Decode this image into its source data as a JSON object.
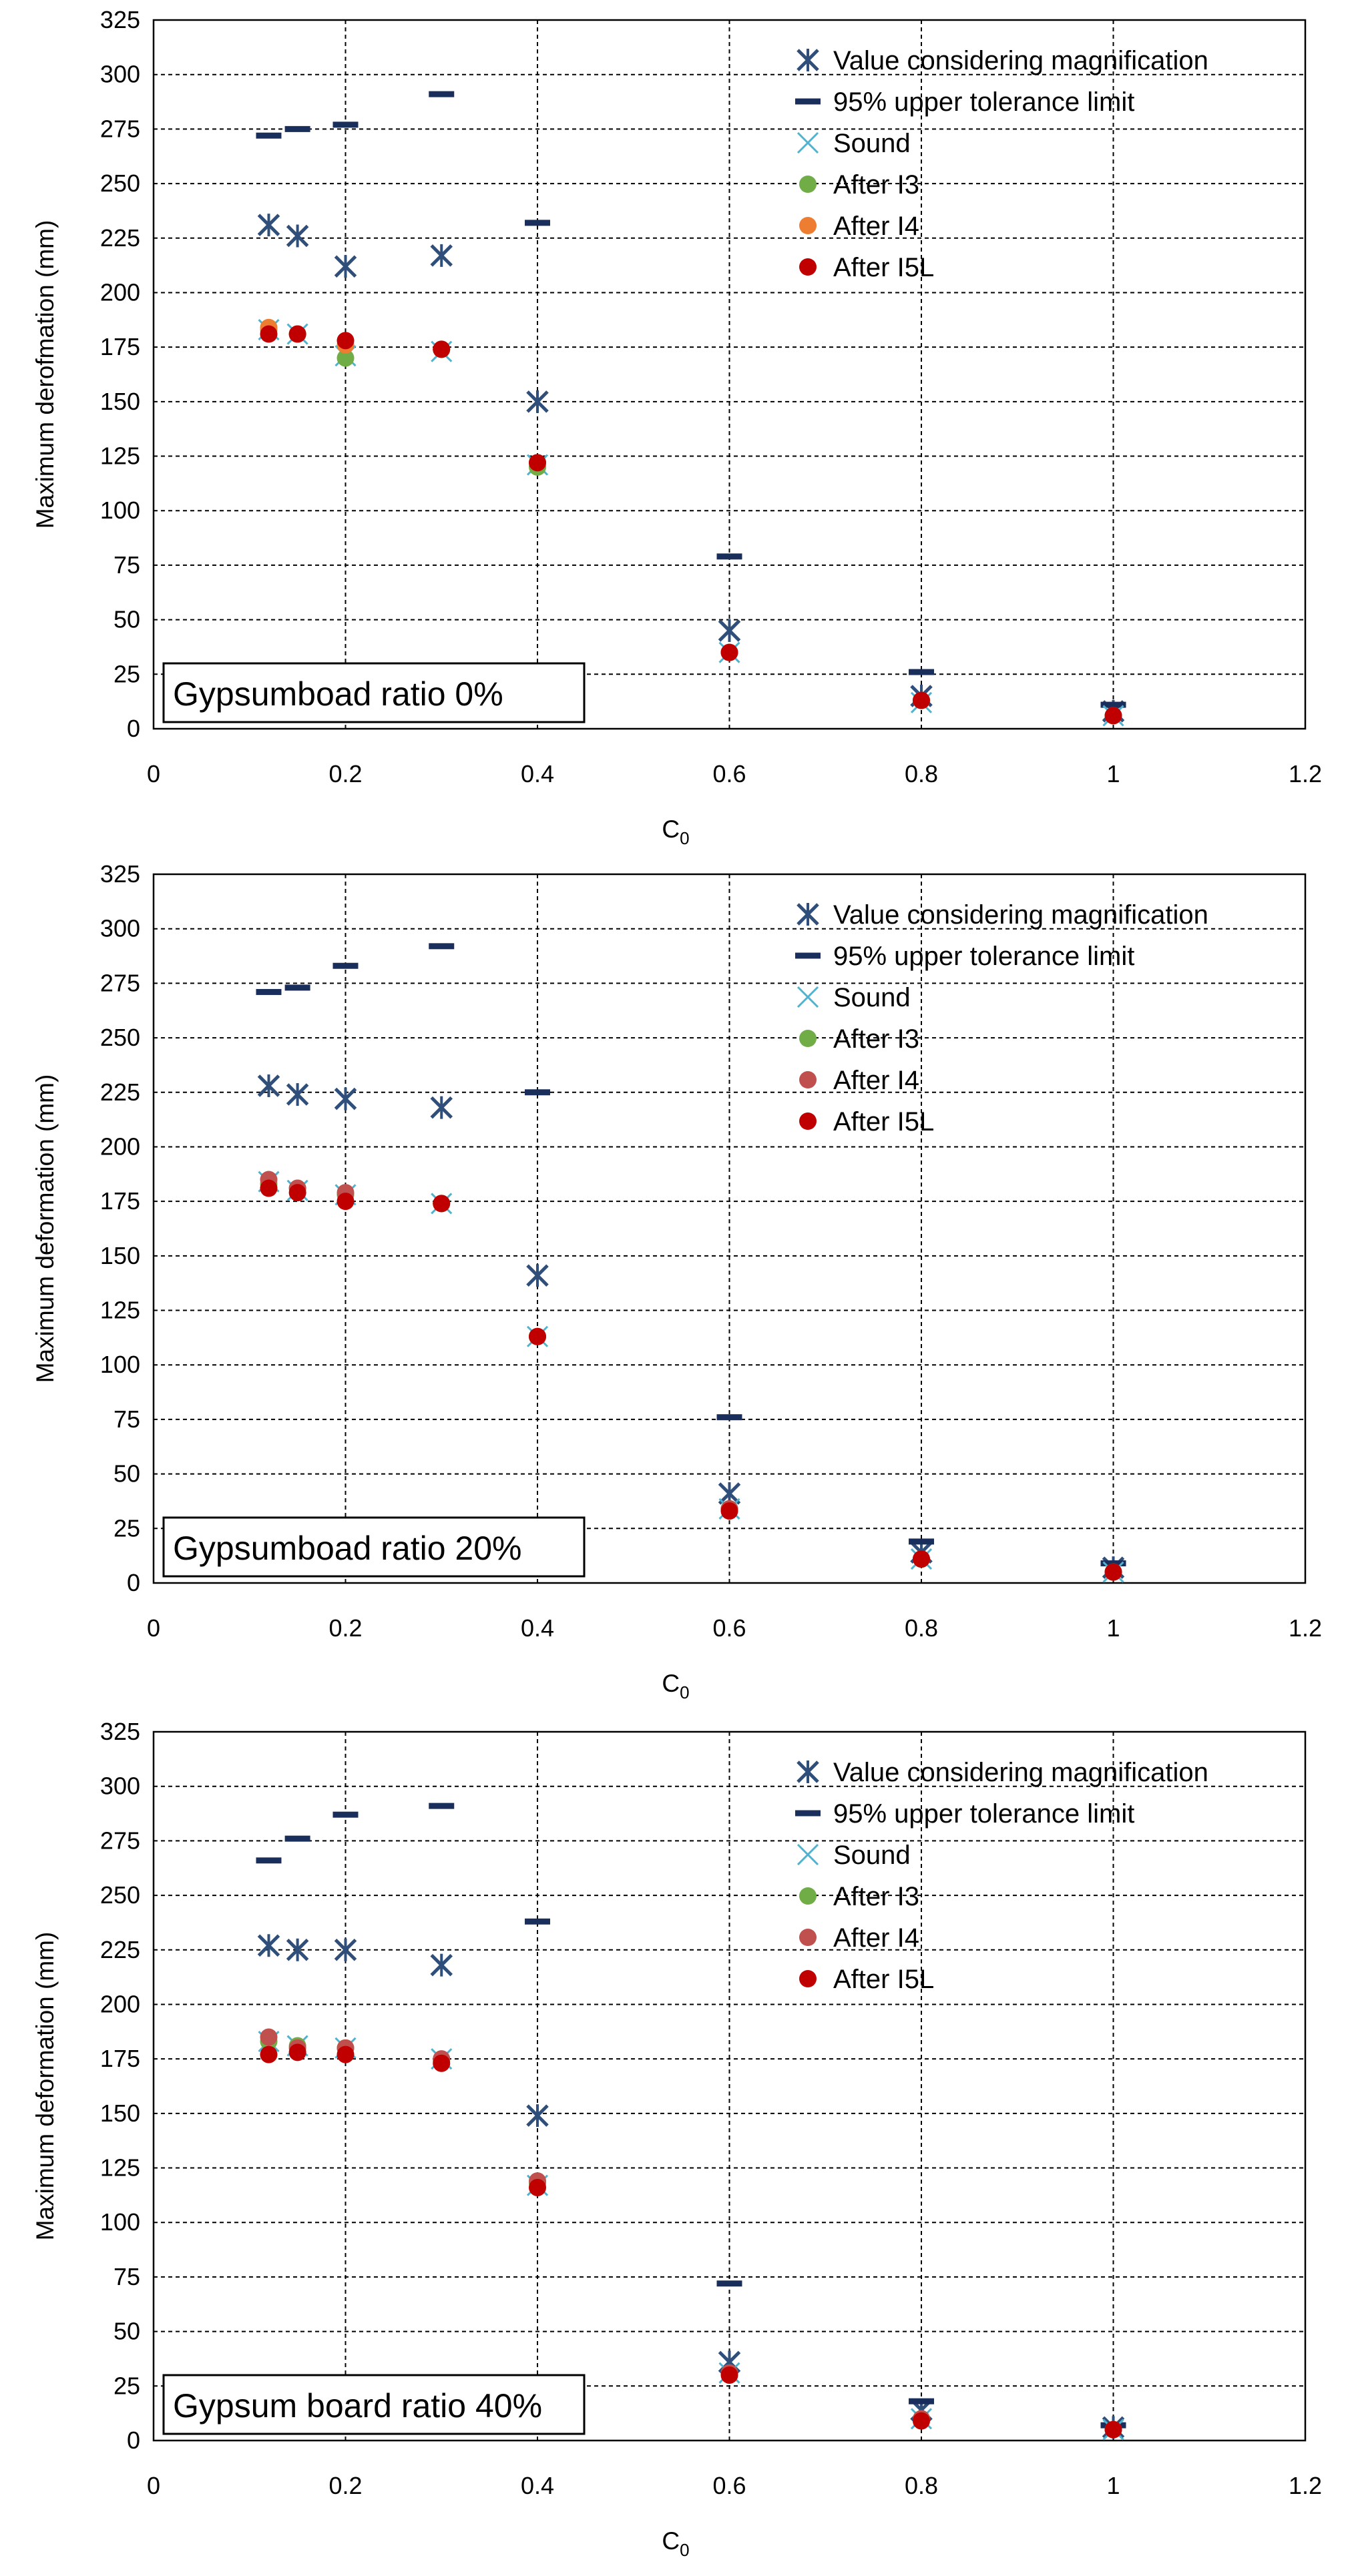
{
  "colors": {
    "value_considering_magnification": "#2f4f7a",
    "upper_tolerance": "#1a2e5c",
    "sound": "#4fb3cf",
    "after_i3": "#70ad47",
    "after_i4_first": "#ed7d31",
    "after_i4": "#c0504d",
    "after_i5l": "#c00000"
  },
  "chart_data": [
    {
      "type": "scatter",
      "xlabel": "C0",
      "xlabel_main": "C",
      "xlabel_sub": "0",
      "ylabel": "Maximum derofmation (mm)",
      "xlim": [
        0,
        1.2
      ],
      "ylim": [
        0,
        325
      ],
      "xticks": [
        "0",
        "0.2",
        "0.4",
        "0.6",
        "0.8",
        "1",
        "1.2"
      ],
      "yticks": [
        "0",
        "25",
        "50",
        "75",
        "100",
        "125",
        "150",
        "175",
        "200",
        "225",
        "250",
        "275",
        "300",
        "325"
      ],
      "box_label": "Gypsumboad ratio 0%",
      "i4_color_key": "after_i4_first",
      "series": [
        {
          "name": "Value considering magnification",
          "key": "value_considering_magnification",
          "marker": "asterisk",
          "x": [
            0.12,
            0.15,
            0.2,
            0.3,
            0.4,
            0.6,
            0.8,
            1.0
          ],
          "y": [
            231,
            226,
            212,
            217,
            150,
            45,
            15,
            8
          ]
        },
        {
          "name": "95% upper tolerance limit",
          "key": "upper_tolerance",
          "marker": "dash",
          "x": [
            0.12,
            0.15,
            0.2,
            0.3,
            0.4,
            0.6,
            0.8,
            1.0
          ],
          "y": [
            272,
            275,
            277,
            291,
            232,
            79,
            26,
            11
          ]
        },
        {
          "name": "Sound",
          "key": "sound",
          "marker": "x",
          "x": [
            0.12,
            0.15,
            0.2,
            0.3,
            0.4,
            0.6,
            0.8,
            1.0
          ],
          "y": [
            183,
            181,
            171,
            173,
            121,
            35,
            12,
            6
          ]
        },
        {
          "name": "After I3",
          "key": "after_i3",
          "marker": "circle",
          "x": [
            0.12,
            0.15,
            0.2,
            0.3,
            0.4,
            0.6,
            0.8,
            1.0
          ],
          "y": [
            183,
            181,
            170,
            174,
            120,
            35,
            13,
            6
          ]
        },
        {
          "name": "After I4",
          "key": "after_i4_first",
          "marker": "circle",
          "x": [
            0.12,
            0.15,
            0.2,
            0.3,
            0.4,
            0.6,
            0.8,
            1.0
          ],
          "y": [
            184,
            181,
            176,
            174,
            122,
            35,
            13,
            6
          ]
        },
        {
          "name": "After I5L",
          "key": "after_i5l",
          "marker": "circle",
          "x": [
            0.12,
            0.15,
            0.2,
            0.3,
            0.4,
            0.6,
            0.8,
            1.0
          ],
          "y": [
            181,
            181,
            178,
            174,
            122,
            35,
            13,
            6
          ]
        }
      ]
    },
    {
      "type": "scatter",
      "xlabel": "C0",
      "xlabel_main": "C",
      "xlabel_sub": "0",
      "ylabel": "Maximum deformation (mm)",
      "xlim": [
        0,
        1.2
      ],
      "ylim": [
        0,
        325
      ],
      "xticks": [
        "0",
        "0.2",
        "0.4",
        "0.6",
        "0.8",
        "1",
        "1.2"
      ],
      "yticks": [
        "0",
        "25",
        "50",
        "75",
        "100",
        "125",
        "150",
        "175",
        "200",
        "225",
        "250",
        "275",
        "300",
        "325"
      ],
      "box_label": "Gypsumboad ratio 20%",
      "series": [
        {
          "name": "Value considering magnification",
          "key": "value_considering_magnification",
          "marker": "asterisk",
          "x": [
            0.12,
            0.15,
            0.2,
            0.3,
            0.4,
            0.6,
            0.8,
            1.0
          ],
          "y": [
            228,
            224,
            222,
            218,
            141,
            41,
            14,
            7
          ]
        },
        {
          "name": "95% upper tolerance limit",
          "key": "upper_tolerance",
          "marker": "dash",
          "x": [
            0.12,
            0.15,
            0.2,
            0.3,
            0.4,
            0.6,
            0.8,
            1.0
          ],
          "y": [
            271,
            273,
            283,
            292,
            225,
            76,
            19,
            9
          ]
        },
        {
          "name": "Sound",
          "key": "sound",
          "marker": "x",
          "x": [
            0.12,
            0.15,
            0.2,
            0.3,
            0.4,
            0.6,
            0.8,
            1.0
          ],
          "y": [
            184,
            180,
            178,
            174,
            113,
            34,
            11,
            5
          ]
        },
        {
          "name": "After I3",
          "key": "after_i3",
          "marker": "circle",
          "x": [
            0.12,
            0.15,
            0.2,
            0.3,
            0.4,
            0.6,
            0.8,
            1.0
          ],
          "y": [
            183,
            181,
            178,
            174,
            113,
            34,
            11,
            5
          ]
        },
        {
          "name": "After I4",
          "key": "after_i4",
          "marker": "circle",
          "x": [
            0.12,
            0.15,
            0.2,
            0.3,
            0.4,
            0.6,
            0.8,
            1.0
          ],
          "y": [
            185,
            181,
            179,
            174,
            113,
            34,
            11,
            5
          ]
        },
        {
          "name": "After I5L",
          "key": "after_i5l",
          "marker": "circle",
          "x": [
            0.12,
            0.15,
            0.2,
            0.3,
            0.4,
            0.6,
            0.8,
            1.0
          ],
          "y": [
            181,
            179,
            175,
            174,
            113,
            33,
            11,
            5
          ]
        }
      ]
    },
    {
      "type": "scatter",
      "xlabel": "C0",
      "xlabel_main": "C",
      "xlabel_sub": "0",
      "ylabel": "Maximum deformation (mm)",
      "xlim": [
        0,
        1.2
      ],
      "ylim": [
        0,
        325
      ],
      "xticks": [
        "0",
        "0.2",
        "0.4",
        "0.6",
        "0.8",
        "1",
        "1.2"
      ],
      "yticks": [
        "0",
        "25",
        "50",
        "75",
        "100",
        "125",
        "150",
        "175",
        "200",
        "225",
        "250",
        "275",
        "300",
        "325"
      ],
      "box_label": "Gypsum board ratio 40%",
      "series": [
        {
          "name": "Value considering magnification",
          "key": "value_considering_magnification",
          "marker": "asterisk",
          "x": [
            0.12,
            0.15,
            0.2,
            0.3,
            0.4,
            0.6,
            0.8,
            1.0
          ],
          "y": [
            227,
            225,
            225,
            218,
            149,
            36,
            14,
            6
          ]
        },
        {
          "name": "95% upper tolerance limit",
          "key": "upper_tolerance",
          "marker": "dash",
          "x": [
            0.12,
            0.15,
            0.2,
            0.3,
            0.4,
            0.6,
            0.8,
            1.0
          ],
          "y": [
            266,
            276,
            287,
            291,
            238,
            72,
            18,
            7
          ]
        },
        {
          "name": "Sound",
          "key": "sound",
          "marker": "x",
          "x": [
            0.12,
            0.15,
            0.2,
            0.3,
            0.4,
            0.6,
            0.8,
            1.0
          ],
          "y": [
            183,
            181,
            180,
            175,
            117,
            31,
            10,
            5
          ]
        },
        {
          "name": "After I3",
          "key": "after_i3",
          "marker": "circle",
          "x": [
            0.12,
            0.15,
            0.2,
            0.3,
            0.4,
            0.6,
            0.8,
            1.0
          ],
          "y": [
            183,
            181,
            180,
            174,
            118,
            31,
            10,
            5
          ]
        },
        {
          "name": "After I4",
          "key": "after_i4",
          "marker": "circle",
          "x": [
            0.12,
            0.15,
            0.2,
            0.3,
            0.4,
            0.6,
            0.8,
            1.0
          ],
          "y": [
            185,
            180,
            180,
            175,
            119,
            31,
            10,
            5
          ]
        },
        {
          "name": "After I5L",
          "key": "after_i5l",
          "marker": "circle",
          "x": [
            0.12,
            0.15,
            0.2,
            0.3,
            0.4,
            0.6,
            0.8,
            1.0
          ],
          "y": [
            177,
            178,
            177,
            173,
            116,
            30,
            9,
            5
          ]
        }
      ]
    }
  ]
}
